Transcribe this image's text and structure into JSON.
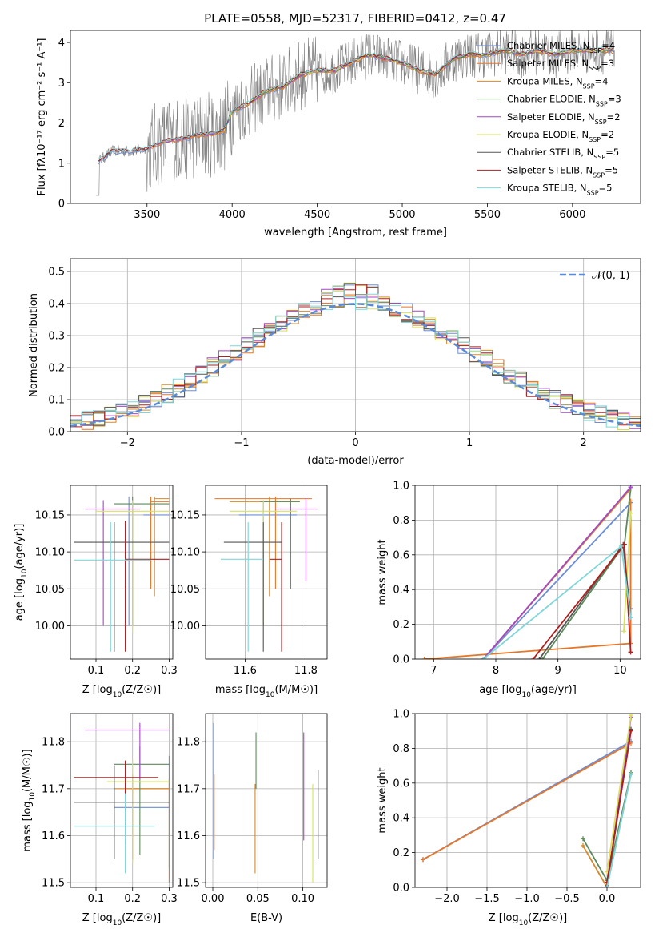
{
  "title": "PLATE=0558, MJD=52317, FIBERID=0412, z=0.47",
  "colors": [
    "#6c8ed6",
    "#e5772a",
    "#d4892d",
    "#5d8a5d",
    "#a347c4",
    "#d8e05e",
    "#555555",
    "#b01e1e",
    "#7fd6d8"
  ],
  "chart_data": [
    {
      "type": "line",
      "panel": "spectrum",
      "title": "PLATE=0558, MJD=52317, FIBERID=0412, z=0.47",
      "xlabel": "wavelength [Angstrom, rest frame]",
      "ylabel": "Flux [fλ10⁻¹⁷ erg cm⁻² s⁻¹ A⁻¹]",
      "xlim": [
        3050,
        6400
      ],
      "ylim": [
        0,
        4.3
      ],
      "xticks": [
        "3500",
        "4000",
        "4500",
        "5000",
        "5500",
        "6000"
      ],
      "yticks": [
        "0",
        "1",
        "2",
        "3",
        "4"
      ],
      "grid": false,
      "legend_position": "upper-right",
      "legend": [
        {
          "name": "Chabrier MILES, N",
          "sub": "SSP",
          "tail": "=4"
        },
        {
          "name": "Salpeter MILES, N",
          "sub": "SSP",
          "tail": "=3"
        },
        {
          "name": "Kroupa MILES, N",
          "sub": "SSP",
          "tail": "=4"
        },
        {
          "name": "Chabrier ELODIE, N",
          "sub": "SSP",
          "tail": "=3"
        },
        {
          "name": "Salpeter ELODIE, N",
          "sub": "SSP",
          "tail": "=2"
        },
        {
          "name": "Kroupa ELODIE, N",
          "sub": "SSP",
          "tail": "=2"
        },
        {
          "name": "Chabrier STELIB, N",
          "sub": "SSP",
          "tail": "=5"
        },
        {
          "name": "Salpeter STELIB, N",
          "sub": "SSP",
          "tail": "=5"
        },
        {
          "name": "Kroupa STELIB, N",
          "sub": "SSP",
          "tail": "=5"
        }
      ],
      "data_range": [
        3200,
        6250
      ],
      "model_knots": [
        [
          3215,
          1.05
        ],
        [
          3300,
          1.3
        ],
        [
          3400,
          1.3
        ],
        [
          3500,
          1.35
        ],
        [
          3600,
          1.55
        ],
        [
          3700,
          1.6
        ],
        [
          3800,
          1.7
        ],
        [
          3900,
          1.75
        ],
        [
          3950,
          1.8
        ],
        [
          4000,
          2.3
        ],
        [
          4100,
          2.5
        ],
        [
          4200,
          2.8
        ],
        [
          4300,
          2.9
        ],
        [
          4400,
          3.2
        ],
        [
          4500,
          3.3
        ],
        [
          4600,
          3.3
        ],
        [
          4700,
          3.5
        ],
        [
          4800,
          3.7
        ],
        [
          4900,
          3.6
        ],
        [
          5000,
          3.5
        ],
        [
          5100,
          3.3
        ],
        [
          5200,
          3.2
        ],
        [
          5300,
          3.6
        ],
        [
          5400,
          3.7
        ],
        [
          5500,
          3.7
        ],
        [
          5600,
          3.8
        ],
        [
          5700,
          3.7
        ],
        [
          5800,
          3.8
        ],
        [
          5900,
          3.7
        ],
        [
          6000,
          3.8
        ],
        [
          6100,
          3.8
        ],
        [
          6250,
          3.8
        ]
      ]
    },
    {
      "type": "step-histogram",
      "panel": "residuals",
      "xlabel": "(data-model)/error",
      "ylabel": "Normed distribution",
      "xlim": [
        -2.5,
        2.5
      ],
      "ylim": [
        0,
        0.54
      ],
      "xticks": [
        "−2",
        "−1",
        "0",
        "1",
        "2"
      ],
      "yticks": [
        "0.0",
        "0.1",
        "0.2",
        "0.3",
        "0.4",
        "0.5"
      ],
      "grid": true,
      "legend_position": "upper-right",
      "legend": "𝒩(0, 1)",
      "bin_width": 0.1
    },
    {
      "type": "errorbar",
      "panel": "age-vs-Z",
      "xlabel": "Z [log10(Z/Z☉)]",
      "ylabel": "age  [log10(age/yr)]",
      "xlim": [
        0.03,
        0.31
      ],
      "ylim": [
        9.955,
        10.19
      ],
      "xticks": [
        "0.1",
        "0.2",
        "0.3"
      ],
      "yticks": [
        "10.00",
        "10.05",
        "10.10",
        "10.15"
      ],
      "grid": true,
      "points": [
        {
          "x": 0.19,
          "y": 10.15,
          "xerr": [
            0.23,
            0.3
          ],
          "yerr": [
            10.0,
            10.175
          ]
        },
        {
          "x": 0.25,
          "y": 10.168,
          "xerr": [
            0.25,
            0.3
          ],
          "yerr": [
            10.05,
            10.175
          ]
        },
        {
          "x": 0.26,
          "y": 10.172,
          "xerr": [
            0.26,
            0.3
          ],
          "yerr": [
            10.04,
            10.175
          ]
        },
        {
          "x": 0.2,
          "y": 10.165,
          "xerr": [
            0.15,
            0.3
          ],
          "yerr": [
            10.0,
            10.175
          ]
        },
        {
          "x": 0.12,
          "y": 10.158,
          "xerr": [
            0.07,
            0.22
          ],
          "yerr": [
            10.0,
            10.17
          ]
        },
        {
          "x": 0.2,
          "y": 10.155,
          "xerr": [
            0.1,
            0.3
          ],
          "yerr": [
            9.99,
            10.17
          ]
        },
        {
          "x": 0.15,
          "y": 10.113,
          "xerr": [
            0.04,
            0.3
          ],
          "yerr": [
            9.965,
            10.14
          ]
        },
        {
          "x": 0.18,
          "y": 10.09,
          "xerr": [
            0.18,
            0.3
          ],
          "yerr": [
            9.965,
            10.142
          ]
        },
        {
          "x": 0.14,
          "y": 10.089,
          "xerr": [
            0.04,
            0.25
          ],
          "yerr": [
            9.965,
            10.14
          ]
        }
      ]
    },
    {
      "type": "errorbar",
      "panel": "age-vs-mass",
      "xlabel": "mass [log10(M/M☉)]",
      "ylabel": "",
      "xlim": [
        11.47,
        11.87
      ],
      "ylim": [
        9.955,
        10.19
      ],
      "xticks": [
        "11.6",
        "11.8"
      ],
      "yticks": [
        "10.00",
        "10.05",
        "10.10",
        "10.15"
      ],
      "grid": true,
      "points": [
        {
          "x": 11.66,
          "y": 10.15,
          "xerr": [
            11.58,
            11.77
          ],
          "yerr": [
            10.0,
            10.17
          ]
        },
        {
          "x": 11.7,
          "y": 10.172,
          "xerr": [
            11.5,
            11.82
          ],
          "yerr": [
            10.05,
            10.175
          ]
        },
        {
          "x": 11.68,
          "y": 10.168,
          "xerr": [
            11.55,
            11.78
          ],
          "yerr": [
            10.04,
            10.175
          ]
        },
        {
          "x": 11.75,
          "y": 10.168,
          "xerr": [
            11.65,
            11.78
          ],
          "yerr": [
            10.05,
            10.172
          ]
        },
        {
          "x": 11.8,
          "y": 10.158,
          "xerr": [
            11.7,
            11.84
          ],
          "yerr": [
            10.06,
            10.172
          ]
        },
        {
          "x": 11.66,
          "y": 10.155,
          "xerr": [
            11.55,
            11.77
          ],
          "yerr": [
            10.0,
            10.17
          ]
        },
        {
          "x": 11.66,
          "y": 10.113,
          "xerr": [
            11.53,
            11.72
          ],
          "yerr": [
            9.965,
            10.14
          ]
        },
        {
          "x": 11.72,
          "y": 10.09,
          "xerr": [
            11.68,
            11.72
          ],
          "yerr": [
            9.965,
            10.14
          ]
        },
        {
          "x": 11.61,
          "y": 10.09,
          "xerr": [
            11.52,
            11.66
          ],
          "yerr": [
            9.965,
            10.14
          ]
        }
      ]
    },
    {
      "type": "line",
      "panel": "weight-vs-age",
      "xlabel": "age  [log10(age/yr)]",
      "ylabel": "mass weight",
      "xlim": [
        6.7,
        10.33
      ],
      "ylim": [
        0,
        1.0
      ],
      "xticks": [
        "7",
        "8",
        "9",
        "10"
      ],
      "yticks": [
        "0.0",
        "0.2",
        "0.4",
        "0.6",
        "0.8",
        "1.0"
      ],
      "grid": true,
      "series": [
        {
          "points": [
            [
              7.8,
              0.0
            ],
            [
              10.17,
              0.9
            ],
            [
              10.17,
              0.29
            ]
          ]
        },
        {
          "points": [
            [
              6.85,
              0.0
            ],
            [
              10.17,
              0.09
            ],
            [
              10.17,
              0.91
            ]
          ]
        },
        {
          "points": [
            [
              7.8,
              0.0
            ],
            [
              10.17,
              0.98
            ]
          ]
        },
        {
          "points": [
            [
              8.75,
              0.0
            ],
            [
              10.07,
              0.66
            ],
            [
              10.17,
              0.98
            ]
          ]
        },
        {
          "points": [
            [
              7.8,
              0.0
            ],
            [
              10.17,
              0.99
            ]
          ]
        },
        {
          "points": [
            [
              10.06,
              0.16
            ],
            [
              10.17,
              0.84
            ]
          ]
        },
        {
          "points": [
            [
              8.7,
              0.0
            ],
            [
              10.05,
              0.66
            ],
            [
              10.17,
              0.24
            ]
          ]
        },
        {
          "points": [
            [
              8.6,
              0.0
            ],
            [
              10.07,
              0.66
            ],
            [
              10.17,
              0.04
            ]
          ]
        },
        {
          "points": [
            [
              7.8,
              0.0
            ],
            [
              10.02,
              0.65
            ],
            [
              10.17,
              0.24
            ]
          ]
        }
      ]
    },
    {
      "type": "errorbar",
      "panel": "mass-vs-Z",
      "xlabel": "Z [log10(Z/Z☉)]",
      "ylabel": "mass [log10(M/M☉)]",
      "xlim": [
        0.03,
        0.31
      ],
      "ylim": [
        11.49,
        11.86
      ],
      "xticks": [
        "0.1",
        "0.2",
        "0.3"
      ],
      "yticks": [
        "11.5",
        "11.6",
        "11.7",
        "11.8"
      ],
      "grid": true,
      "points": [
        {
          "x": 0.3,
          "y": 11.66,
          "xerr": [
            0.15,
            0.3
          ],
          "yerr": [
            11.53,
            11.77
          ]
        },
        {
          "x": 0.3,
          "y": 11.7,
          "xerr": [
            0.18,
            0.3
          ],
          "yerr": [
            11.5,
            11.72
          ]
        },
        {
          "x": 0.2,
          "y": 11.7,
          "xerr": [
            0.15,
            0.3
          ],
          "yerr": [
            11.55,
            11.73
          ]
        },
        {
          "x": 0.22,
          "y": 11.752,
          "xerr": [
            0.15,
            0.3
          ],
          "yerr": [
            11.56,
            11.79
          ]
        },
        {
          "x": 0.22,
          "y": 11.825,
          "xerr": [
            0.07,
            0.3
          ],
          "yerr": [
            11.72,
            11.84
          ]
        },
        {
          "x": 0.2,
          "y": 11.715,
          "xerr": [
            0.13,
            0.3
          ],
          "yerr": [
            11.54,
            11.76
          ]
        },
        {
          "x": 0.15,
          "y": 11.671,
          "xerr": [
            0.04,
            0.3
          ],
          "yerr": [
            11.55,
            11.75
          ]
        },
        {
          "x": 0.18,
          "y": 11.724,
          "xerr": [
            0.04,
            0.27
          ],
          "yerr": [
            11.58,
            11.76
          ]
        },
        {
          "x": 0.18,
          "y": 11.62,
          "xerr": [
            0.04,
            0.26
          ],
          "yerr": [
            11.52,
            11.69
          ]
        }
      ]
    },
    {
      "type": "errorbar",
      "panel": "mass-vs-ebv",
      "xlabel": "E(B-V)",
      "ylabel": "",
      "xlim": [
        -0.008,
        0.127
      ],
      "ylim": [
        11.49,
        11.86
      ],
      "xticks": [
        "0.00",
        "0.05",
        "0.10"
      ],
      "yticks": [
        "11.5",
        "11.6",
        "11.7",
        "11.8"
      ],
      "grid": true,
      "points": [
        {
          "x": 0.001,
          "y": 11.74,
          "yerr": [
            11.55,
            11.84
          ]
        },
        {
          "x": 0.0015,
          "y": 11.66,
          "yerr": [
            11.57,
            11.73
          ]
        },
        {
          "x": 0.047,
          "y": 11.62,
          "yerr": [
            11.52,
            11.71
          ]
        },
        {
          "x": 0.048,
          "y": 11.74,
          "yerr": [
            11.7,
            11.82
          ]
        },
        {
          "x": 0.101,
          "y": 11.72,
          "yerr": [
            11.59,
            11.82
          ]
        },
        {
          "x": 0.111,
          "y": 11.62,
          "yerr": [
            11.5,
            11.71
          ]
        },
        {
          "x": 0.117,
          "y": 11.64,
          "yerr": [
            11.55,
            11.74
          ]
        }
      ]
    },
    {
      "type": "line",
      "panel": "weight-vs-Z",
      "xlabel": "Z [log10(Z/Z☉)]",
      "ylabel": "mass weight",
      "xlim": [
        -2.4,
        0.42
      ],
      "ylim": [
        0,
        1.0
      ],
      "xticks": [
        "−2.0",
        "−1.5",
        "−1.0",
        "−0.5",
        "0.0"
      ],
      "yticks": [
        "0.0",
        "0.2",
        "0.4",
        "0.6",
        "0.8",
        "1.0"
      ],
      "grid": true,
      "series": [
        {
          "points": [
            [
              -2.3,
              0.16
            ],
            [
              0.3,
              0.84
            ]
          ]
        },
        {
          "points": [
            [
              -2.3,
              0.16
            ],
            [
              0.3,
              0.83
            ]
          ]
        },
        {
          "points": [
            [
              -0.3,
              0.24
            ],
            [
              0.0,
              0.0
            ],
            [
              0.3,
              0.65
            ]
          ]
        },
        {
          "points": [
            [
              -0.3,
              0.28
            ],
            [
              0.0,
              0.04
            ],
            [
              0.3,
              0.66
            ]
          ]
        },
        {
          "points": [
            [
              0.0,
              0.0
            ],
            [
              0.3,
              0.98
            ]
          ]
        },
        {
          "points": [
            [
              0.0,
              0.09
            ],
            [
              0.3,
              0.99
            ]
          ]
        },
        {
          "points": [
            [
              0.0,
              0.01
            ],
            [
              0.3,
              0.91
            ]
          ]
        },
        {
          "points": [
            [
              0.0,
              0.03
            ],
            [
              0.3,
              0.9
            ]
          ]
        },
        {
          "points": [
            [
              0.0,
              0.0
            ],
            [
              0.3,
              0.65
            ]
          ]
        }
      ]
    }
  ]
}
